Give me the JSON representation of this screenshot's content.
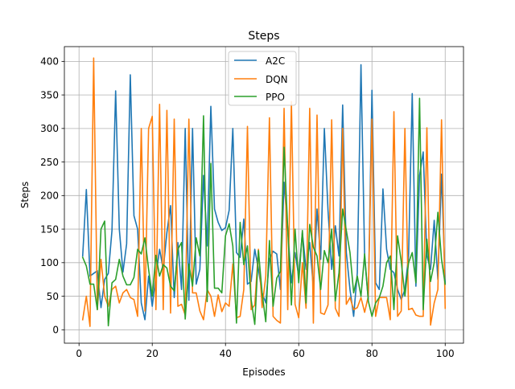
{
  "chart_data": {
    "type": "line",
    "title": "Steps",
    "xlabel": "Episodes",
    "ylabel": "Steps",
    "xlim": [
      -4,
      105
    ],
    "ylim": [
      -20,
      422
    ],
    "xticks": [
      0,
      20,
      40,
      60,
      80,
      100
    ],
    "yticks": [
      0,
      50,
      100,
      150,
      200,
      250,
      300,
      350,
      400
    ],
    "grid": true,
    "legend_position": "top-center",
    "series": [
      {
        "name": "A2C",
        "color": "#1f77b4",
        "x": [
          1,
          2,
          3,
          4,
          5,
          6,
          7,
          8,
          9,
          10,
          11,
          12,
          13,
          14,
          15,
          16,
          17,
          18,
          19,
          20,
          21,
          22,
          23,
          24,
          25,
          26,
          27,
          28,
          29,
          30,
          31,
          32,
          33,
          34,
          35,
          36,
          37,
          38,
          39,
          40,
          41,
          42,
          43,
          44,
          45,
          46,
          47,
          48,
          49,
          50,
          51,
          52,
          53,
          54,
          55,
          56,
          57,
          58,
          59,
          60,
          61,
          62,
          63,
          64,
          65,
          66,
          67,
          68,
          69,
          70,
          71,
          72,
          73,
          74,
          75,
          76,
          77,
          78,
          79,
          80,
          81,
          82,
          83,
          84,
          85,
          86,
          87,
          88,
          89,
          90,
          91,
          92,
          93,
          94,
          95,
          96,
          97,
          98,
          99,
          100
        ],
        "values": [
          110,
          209,
          80,
          84,
          88,
          33,
          75,
          84,
          148,
          356,
          150,
          86,
          128,
          380,
          170,
          150,
          40,
          15,
          80,
          35,
          80,
          120,
          90,
          145,
          185,
          48,
          130,
          60,
          300,
          44,
          300,
          68,
          90,
          230,
          125,
          333,
          180,
          160,
          148,
          152,
          178,
          300,
          115,
          108,
          165,
          68,
          72,
          120,
          90,
          55,
          40,
          105,
          117,
          113,
          60,
          220,
          150,
          70,
          115,
          80,
          145,
          90,
          130,
          62,
          180,
          105,
          300,
          178,
          90,
          155,
          110,
          335,
          115,
          60,
          20,
          85,
          395,
          108,
          45,
          357,
          70,
          60,
          210,
          120,
          90,
          85,
          60,
          45,
          60,
          110,
          352,
          65,
          230,
          265,
          110,
          90,
          163,
          75,
          232,
          70
        ]
      },
      {
        "name": "DQN",
        "color": "#ff7f0e",
        "x": [
          1,
          2,
          3,
          4,
          5,
          6,
          7,
          8,
          9,
          10,
          11,
          12,
          13,
          14,
          15,
          16,
          17,
          18,
          19,
          20,
          21,
          22,
          23,
          24,
          25,
          26,
          27,
          28,
          29,
          30,
          31,
          32,
          33,
          34,
          35,
          36,
          37,
          38,
          39,
          40,
          41,
          42,
          43,
          44,
          45,
          46,
          47,
          48,
          49,
          50,
          51,
          52,
          53,
          54,
          55,
          56,
          57,
          58,
          59,
          60,
          61,
          62,
          63,
          64,
          65,
          66,
          67,
          68,
          69,
          70,
          71,
          72,
          73,
          74,
          75,
          76,
          77,
          78,
          79,
          80,
          81,
          82,
          83,
          84,
          85,
          86,
          87,
          88,
          89,
          90,
          91,
          92,
          93,
          94,
          95,
          96,
          97,
          98,
          99,
          100
        ],
        "values": [
          15,
          50,
          5,
          405,
          30,
          105,
          50,
          35,
          60,
          65,
          40,
          55,
          60,
          48,
          45,
          20,
          300,
          28,
          300,
          318,
          30,
          336,
          30,
          327,
          25,
          314,
          35,
          38,
          22,
          314,
          55,
          55,
          28,
          15,
          60,
          50,
          20,
          52,
          27,
          40,
          35,
          98,
          18,
          20,
          60,
          303,
          30,
          37,
          120,
          33,
          80,
          316,
          20,
          14,
          10,
          330,
          30,
          340,
          38,
          18,
          100,
          32,
          330,
          10,
          320,
          25,
          23,
          37,
          313,
          32,
          20,
          300,
          38,
          48,
          30,
          33,
          48,
          26,
          50,
          314,
          20,
          48,
          48,
          48,
          15,
          325,
          20,
          28,
          300,
          30,
          32,
          22,
          20,
          20,
          301,
          7,
          40,
          60,
          313,
          32
        ]
      },
      {
        "name": "PPO",
        "color": "#2ca02c",
        "x": [
          1,
          2,
          3,
          4,
          5,
          6,
          7,
          8,
          9,
          10,
          11,
          12,
          13,
          14,
          15,
          16,
          17,
          18,
          19,
          20,
          21,
          22,
          23,
          24,
          25,
          26,
          27,
          28,
          29,
          30,
          31,
          32,
          33,
          34,
          35,
          36,
          37,
          38,
          39,
          40,
          41,
          42,
          43,
          44,
          45,
          46,
          47,
          48,
          49,
          50,
          51,
          52,
          53,
          54,
          55,
          56,
          57,
          58,
          59,
          60,
          61,
          62,
          63,
          64,
          65,
          66,
          67,
          68,
          69,
          70,
          71,
          72,
          73,
          74,
          75,
          76,
          77,
          78,
          79,
          80,
          81,
          82,
          83,
          84,
          85,
          86,
          87,
          88,
          89,
          90,
          91,
          92,
          93,
          94,
          95,
          96,
          97,
          98,
          99,
          100
        ],
        "values": [
          108,
          95,
          68,
          68,
          30,
          150,
          162,
          6,
          70,
          75,
          105,
          80,
          67,
          67,
          78,
          120,
          113,
          137,
          90,
          50,
          111,
          80,
          97,
          92,
          65,
          58,
          120,
          130,
          16,
          98,
          65,
          137,
          110,
          319,
          42,
          248,
          62,
          62,
          55,
          140,
          158,
          125,
          10,
          160,
          97,
          125,
          45,
          8,
          118,
          55,
          12,
          133,
          35,
          77,
          87,
          272,
          150,
          37,
          150,
          70,
          148,
          40,
          157,
          123,
          110,
          60,
          118,
          100,
          150,
          43,
          85,
          180,
          148,
          115,
          55,
          80,
          50,
          113,
          43,
          20,
          40,
          48,
          65,
          100,
          110,
          30,
          140,
          102,
          50,
          100,
          115,
          70,
          345,
          30,
          135,
          72,
          100,
          175,
          105,
          68
        ]
      }
    ]
  }
}
